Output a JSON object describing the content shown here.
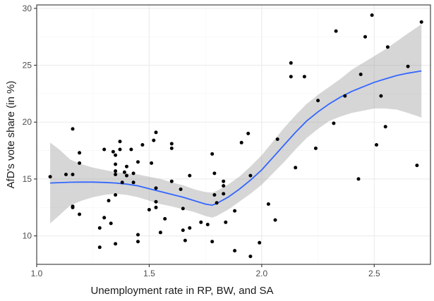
{
  "chart_data": {
    "type": "scatter",
    "xlabel": "Unemployment rate in RP, BW, and SA",
    "ylabel": "AfD's vote share (in %)",
    "xlim": [
      1.0,
      2.75
    ],
    "ylim": [
      7.5,
      30.3
    ],
    "x_ticks": [
      1.0,
      1.5,
      2.0,
      2.5
    ],
    "x_tick_labels": [
      "1.0",
      "1.5",
      "2.0",
      "2.5"
    ],
    "y_ticks": [
      10,
      15,
      20,
      25,
      30
    ],
    "y_tick_labels": [
      "10",
      "15",
      "20",
      "25",
      "30"
    ],
    "grid": true,
    "legend": "none",
    "colors": {
      "panel": "#ffffff",
      "grid_major": "#ebebeb",
      "grid_minor": "#f5f5f5",
      "border": "#333333",
      "points": "#000000",
      "smooth_line": "#3366ff",
      "confidence_band": "#999999"
    },
    "points": [
      [
        1.06,
        15.2
      ],
      [
        1.13,
        15.4
      ],
      [
        1.16,
        15.4
      ],
      [
        1.16,
        12.6
      ],
      [
        1.16,
        12.5
      ],
      [
        1.16,
        19.4
      ],
      [
        1.19,
        17.3
      ],
      [
        1.19,
        16.4
      ],
      [
        1.19,
        11.9
      ],
      [
        1.28,
        10.7
      ],
      [
        1.28,
        9.0
      ],
      [
        1.3,
        17.6
      ],
      [
        1.3,
        11.6
      ],
      [
        1.32,
        13.1
      ],
      [
        1.33,
        11.1
      ],
      [
        1.34,
        17.4
      ],
      [
        1.35,
        17.1
      ],
      [
        1.35,
        16.3
      ],
      [
        1.35,
        15.7
      ],
      [
        1.35,
        15.4
      ],
      [
        1.35,
        13.6
      ],
      [
        1.35,
        9.3
      ],
      [
        1.37,
        18.3
      ],
      [
        1.37,
        17.6
      ],
      [
        1.38,
        14.7
      ],
      [
        1.39,
        15.6
      ],
      [
        1.4,
        15.3
      ],
      [
        1.4,
        16.1
      ],
      [
        1.42,
        17.6
      ],
      [
        1.43,
        15.5
      ],
      [
        1.43,
        14.7
      ],
      [
        1.45,
        16.5
      ],
      [
        1.45,
        10.1
      ],
      [
        1.45,
        9.5
      ],
      [
        1.47,
        18.0
      ],
      [
        1.5,
        12.3
      ],
      [
        1.51,
        16.4
      ],
      [
        1.52,
        18.4
      ],
      [
        1.53,
        19.1
      ],
      [
        1.53,
        14.2
      ],
      [
        1.53,
        13.0
      ],
      [
        1.53,
        12.5
      ],
      [
        1.55,
        10.3
      ],
      [
        1.57,
        11.5
      ],
      [
        1.6,
        18.1
      ],
      [
        1.6,
        17.7
      ],
      [
        1.6,
        14.8
      ],
      [
        1.64,
        14.1
      ],
      [
        1.65,
        12.4
      ],
      [
        1.65,
        10.5
      ],
      [
        1.66,
        9.6
      ],
      [
        1.68,
        15.3
      ],
      [
        1.68,
        10.7
      ],
      [
        1.73,
        11.2
      ],
      [
        1.76,
        11.0
      ],
      [
        1.78,
        17.2
      ],
      [
        1.78,
        9.5
      ],
      [
        1.79,
        13.6
      ],
      [
        1.79,
        15.5
      ],
      [
        1.8,
        12.9
      ],
      [
        1.83,
        14.8
      ],
      [
        1.83,
        14.4
      ],
      [
        1.83,
        13.7
      ],
      [
        1.84,
        11.2
      ],
      [
        1.88,
        12.2
      ],
      [
        1.88,
        8.7
      ],
      [
        1.91,
        18.2
      ],
      [
        1.94,
        19.0
      ],
      [
        1.95,
        15.3
      ],
      [
        1.95,
        8.2
      ],
      [
        1.99,
        9.4
      ],
      [
        2.03,
        12.8
      ],
      [
        2.06,
        11.4
      ],
      [
        2.07,
        18.5
      ],
      [
        2.13,
        24.0
      ],
      [
        2.13,
        25.2
      ],
      [
        2.15,
        16.0
      ],
      [
        2.19,
        24.0
      ],
      [
        2.24,
        17.7
      ],
      [
        2.25,
        21.9
      ],
      [
        2.32,
        19.9
      ],
      [
        2.33,
        28.0
      ],
      [
        2.37,
        22.3
      ],
      [
        2.43,
        15.0
      ],
      [
        2.44,
        24.2
      ],
      [
        2.46,
        27.5
      ],
      [
        2.49,
        29.4
      ],
      [
        2.51,
        18.0
      ],
      [
        2.53,
        22.3
      ],
      [
        2.55,
        19.6
      ],
      [
        2.56,
        26.6
      ],
      [
        2.65,
        24.9
      ],
      [
        2.69,
        16.2
      ],
      [
        2.71,
        28.8
      ]
    ],
    "smooth": {
      "x": [
        1.06,
        1.1,
        1.15,
        1.2,
        1.25,
        1.3,
        1.35,
        1.4,
        1.45,
        1.5,
        1.55,
        1.6,
        1.65,
        1.7,
        1.75,
        1.78,
        1.8,
        1.85,
        1.9,
        1.95,
        2.0,
        2.05,
        2.1,
        2.15,
        2.2,
        2.25,
        2.3,
        2.35,
        2.4,
        2.45,
        2.5,
        2.55,
        2.6,
        2.65,
        2.71
      ],
      "y": [
        14.65,
        14.68,
        14.72,
        14.73,
        14.73,
        14.7,
        14.65,
        14.55,
        14.4,
        14.15,
        13.9,
        13.65,
        13.4,
        13.1,
        12.8,
        12.7,
        12.85,
        13.4,
        14.1,
        14.9,
        15.8,
        16.9,
        18.0,
        19.1,
        20.1,
        20.9,
        21.6,
        22.2,
        22.7,
        23.1,
        23.5,
        23.8,
        24.1,
        24.3,
        24.5
      ],
      "lower": [
        11.1,
        11.8,
        12.7,
        13.1,
        13.4,
        13.6,
        13.7,
        13.6,
        13.4,
        13.1,
        12.8,
        12.6,
        12.35,
        12.1,
        11.75,
        11.6,
        11.75,
        12.3,
        13.0,
        13.7,
        14.5,
        15.5,
        16.5,
        17.6,
        18.6,
        19.4,
        20.1,
        20.5,
        20.8,
        21.0,
        21.2,
        21.2,
        21.1,
        20.8,
        20.4
      ],
      "upper": [
        18.2,
        17.6,
        16.7,
        16.3,
        16.0,
        15.8,
        15.6,
        15.5,
        15.4,
        15.2,
        15.0,
        14.7,
        14.45,
        14.1,
        13.85,
        13.8,
        13.95,
        14.5,
        15.2,
        16.1,
        17.1,
        18.3,
        19.5,
        20.6,
        21.6,
        22.4,
        23.1,
        23.8,
        24.6,
        25.2,
        25.8,
        26.4,
        27.1,
        27.8,
        28.6
      ]
    }
  }
}
